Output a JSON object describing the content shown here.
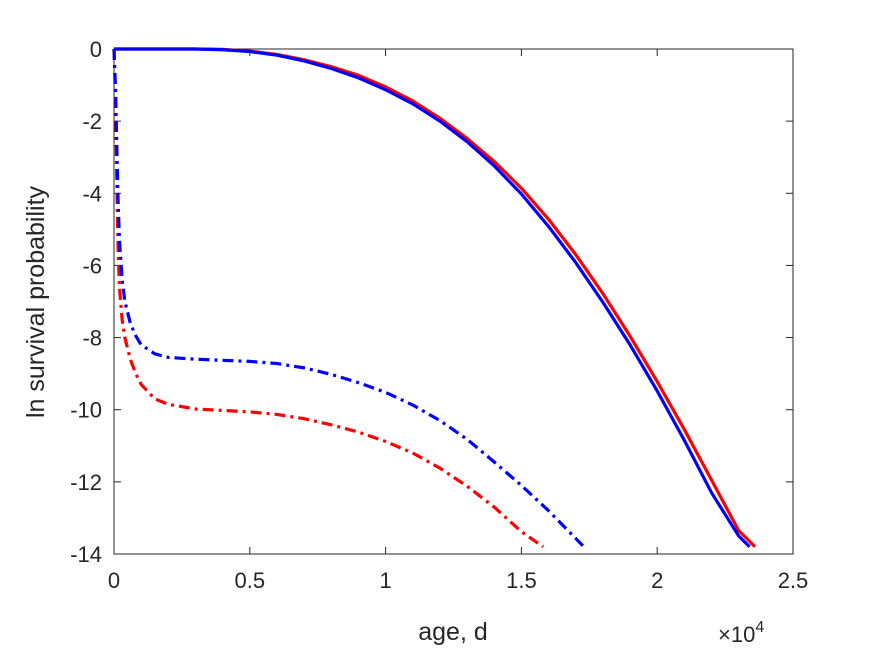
{
  "chart_data": {
    "type": "line",
    "xlabel": "age, d",
    "ylabel": "ln survival probability",
    "x_multiplier": {
      "base": "×10",
      "exponent": "4"
    },
    "xlim": [
      0,
      25000
    ],
    "ylim": [
      -14,
      0
    ],
    "xticks": [
      0,
      5000,
      10000,
      15000,
      20000,
      25000
    ],
    "xtick_labels": [
      "0",
      "0.5",
      "1",
      "1.5",
      "2",
      "2.5"
    ],
    "yticks": [
      0,
      -2,
      -4,
      -6,
      -8,
      -10,
      -12,
      -14
    ],
    "ytick_labels": [
      "0",
      "-2",
      "-4",
      "-6",
      "-8",
      "-10",
      "-12",
      "-14"
    ],
    "grid": false,
    "series": [
      {
        "color": "#ff0000",
        "style": "solid",
        "x": [
          0,
          1000,
          2000,
          3000,
          4000,
          5000,
          6000,
          7000,
          8000,
          9000,
          10000,
          11000,
          12000,
          13000,
          14000,
          15000,
          16000,
          17000,
          18000,
          19000,
          20000,
          21000,
          22000,
          23000,
          23600
        ],
        "y": [
          0,
          0,
          0,
          0,
          -0.01,
          -0.06,
          -0.15,
          -0.3,
          -0.49,
          -0.73,
          -1.05,
          -1.44,
          -1.92,
          -2.48,
          -3.12,
          -3.86,
          -4.72,
          -5.7,
          -6.78,
          -7.96,
          -9.22,
          -10.55,
          -11.95,
          -13.35,
          -13.8
        ]
      },
      {
        "color": "#0000ff",
        "style": "solid",
        "x": [
          0,
          1000,
          2000,
          3000,
          4000,
          5000,
          6000,
          7000,
          8000,
          9000,
          10000,
          11000,
          12000,
          13000,
          14000,
          15000,
          16000,
          17000,
          18000,
          19000,
          20000,
          21000,
          22000,
          23000,
          23400
        ],
        "y": [
          0,
          0,
          0,
          0,
          -0.02,
          -0.07,
          -0.17,
          -0.33,
          -0.54,
          -0.8,
          -1.13,
          -1.52,
          -2.0,
          -2.57,
          -3.24,
          -4.02,
          -4.92,
          -5.92,
          -7.02,
          -8.2,
          -9.48,
          -10.85,
          -12.3,
          -13.5,
          -13.8
        ]
      },
      {
        "color": "#ff0000",
        "style": "dash-dot",
        "x": [
          0,
          60,
          100,
          150,
          200,
          300,
          400,
          600,
          800,
          1000,
          1500,
          2000,
          3000,
          4000,
          5000,
          6000,
          7000,
          8000,
          9000,
          10000,
          11000,
          12000,
          13000,
          14000,
          15000,
          15800
        ],
        "y": [
          0,
          -1.5,
          -3.5,
          -5.5,
          -6.6,
          -7.5,
          -8.0,
          -8.6,
          -9.0,
          -9.3,
          -9.7,
          -9.85,
          -9.98,
          -10.02,
          -10.06,
          -10.13,
          -10.25,
          -10.42,
          -10.62,
          -10.88,
          -11.2,
          -11.62,
          -12.12,
          -12.7,
          -13.38,
          -13.8
        ]
      },
      {
        "color": "#0000ff",
        "style": "dash-dot",
        "x": [
          0,
          60,
          100,
          150,
          200,
          300,
          400,
          600,
          800,
          1000,
          1500,
          2000,
          3000,
          4000,
          5000,
          6000,
          7000,
          8000,
          9000,
          10000,
          11000,
          12000,
          13000,
          14000,
          15000,
          16000,
          17300
        ],
        "y": [
          0,
          -1.2,
          -2.6,
          -4.2,
          -5.3,
          -6.4,
          -7.0,
          -7.6,
          -7.95,
          -8.2,
          -8.45,
          -8.55,
          -8.6,
          -8.63,
          -8.66,
          -8.72,
          -8.84,
          -9.02,
          -9.25,
          -9.52,
          -9.87,
          -10.3,
          -10.82,
          -11.45,
          -12.1,
          -12.8,
          -13.8
        ]
      }
    ]
  }
}
